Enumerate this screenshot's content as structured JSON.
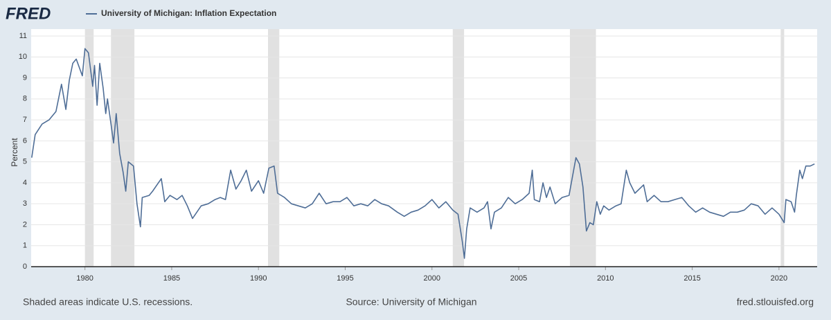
{
  "logo": "FRED",
  "chart_data": {
    "type": "line",
    "y_label": "Percent",
    "xlim": [
      1976.9,
      2022.2
    ],
    "ylim": [
      0,
      11
    ],
    "xticks": [
      1980,
      1985,
      1990,
      1995,
      2000,
      2005,
      2010,
      2015,
      2020
    ],
    "yticks": [
      0,
      1,
      2,
      3,
      4,
      5,
      6,
      7,
      8,
      9,
      10,
      11
    ],
    "grid": true,
    "recession_color": "#e1e1e1",
    "recessions": [
      [
        1980.0,
        1980.5
      ],
      [
        1981.5,
        1982.85
      ],
      [
        1990.55,
        1991.2
      ],
      [
        2001.2,
        2001.85
      ],
      [
        2007.95,
        2009.45
      ],
      [
        2020.1,
        2020.3
      ]
    ],
    "x": [
      1976.93,
      1977.13,
      1977.53,
      1977.93,
      1978.33,
      1978.65,
      1978.9,
      1979.1,
      1979.3,
      1979.5,
      1979.85,
      1980.0,
      1980.2,
      1980.45,
      1980.55,
      1980.7,
      1980.85,
      1981.05,
      1981.2,
      1981.3,
      1981.5,
      1981.65,
      1981.8,
      1982.0,
      1982.2,
      1982.35,
      1982.5,
      1982.8,
      1983.0,
      1983.2,
      1983.3,
      1983.7,
      1983.9,
      1984.4,
      1984.6,
      1984.9,
      1985.3,
      1985.6,
      1985.9,
      1986.2,
      1986.7,
      1987.1,
      1987.5,
      1987.8,
      1988.1,
      1988.4,
      1988.7,
      1989.0,
      1989.3,
      1989.6,
      1990.0,
      1990.3,
      1990.6,
      1990.9,
      1991.1,
      1991.5,
      1991.9,
      1992.3,
      1992.7,
      1993.1,
      1993.5,
      1993.9,
      1994.3,
      1994.7,
      1995.1,
      1995.5,
      1995.9,
      1996.3,
      1996.7,
      1997.1,
      1997.5,
      1998.0,
      1998.4,
      1998.8,
      1999.2,
      1999.6,
      2000.0,
      2000.4,
      2000.8,
      2001.2,
      2001.5,
      2001.75,
      2001.87,
      2002.0,
      2002.2,
      2002.6,
      2003.0,
      2003.2,
      2003.4,
      2003.6,
      2004.0,
      2004.4,
      2004.8,
      2005.2,
      2005.6,
      2005.78,
      2005.9,
      2006.2,
      2006.4,
      2006.6,
      2006.8,
      2007.1,
      2007.5,
      2007.9,
      2008.3,
      2008.5,
      2008.7,
      2008.9,
      2009.1,
      2009.3,
      2009.5,
      2009.7,
      2009.9,
      2010.2,
      2010.6,
      2010.9,
      2011.2,
      2011.4,
      2011.7,
      2012.2,
      2012.4,
      2012.8,
      2013.2,
      2013.6,
      2014.0,
      2014.4,
      2014.8,
      2015.2,
      2015.6,
      2016.0,
      2016.4,
      2016.8,
      2017.2,
      2017.6,
      2018.0,
      2018.4,
      2018.8,
      2019.2,
      2019.6,
      2020.0,
      2020.3,
      2020.4,
      2020.7,
      2020.9,
      2021.0,
      2021.2,
      2021.35,
      2021.55,
      2021.8,
      2022.05
    ],
    "series": [
      {
        "name": "University of Michigan: Inflation Expectation",
        "color": "#4e6d96",
        "values": [
          5.2,
          6.3,
          6.8,
          7.0,
          7.4,
          8.7,
          7.5,
          8.9,
          9.7,
          9.9,
          9.1,
          10.4,
          10.2,
          8.6,
          9.6,
          7.7,
          9.7,
          8.5,
          7.3,
          8.0,
          6.8,
          5.9,
          7.3,
          5.4,
          4.5,
          3.6,
          5.0,
          4.8,
          3.0,
          1.9,
          3.3,
          3.4,
          3.6,
          4.2,
          3.1,
          3.4,
          3.2,
          3.4,
          2.9,
          2.3,
          2.9,
          3.0,
          3.2,
          3.3,
          3.2,
          4.6,
          3.7,
          4.1,
          4.6,
          3.6,
          4.1,
          3.5,
          4.7,
          4.8,
          3.5,
          3.3,
          3.0,
          2.9,
          2.8,
          3.0,
          3.5,
          3.0,
          3.1,
          3.1,
          3.3,
          2.9,
          3.0,
          2.9,
          3.2,
          3.0,
          2.9,
          2.6,
          2.4,
          2.6,
          2.7,
          2.9,
          3.2,
          2.8,
          3.1,
          2.7,
          2.5,
          1.2,
          0.4,
          1.8,
          2.8,
          2.6,
          2.8,
          3.1,
          1.8,
          2.6,
          2.8,
          3.3,
          3.0,
          3.2,
          3.5,
          4.6,
          3.2,
          3.1,
          4.0,
          3.3,
          3.8,
          3.0,
          3.3,
          3.4,
          5.2,
          4.9,
          3.8,
          1.7,
          2.1,
          2.0,
          3.1,
          2.5,
          2.9,
          2.7,
          2.9,
          3.0,
          4.6,
          4.0,
          3.5,
          3.9,
          3.1,
          3.4,
          3.1,
          3.1,
          3.2,
          3.3,
          2.9,
          2.6,
          2.8,
          2.6,
          2.5,
          2.4,
          2.6,
          2.6,
          2.7,
          3.0,
          2.9,
          2.5,
          2.8,
          2.5,
          2.1,
          3.2,
          3.1,
          2.6,
          3.4,
          4.6,
          4.2,
          4.8,
          4.8,
          4.9
        ]
      }
    ]
  },
  "footer": {
    "note": "Shaded areas indicate U.S. recessions.",
    "source": "Source: University of Michigan",
    "site": "fred.stlouisfed.org"
  }
}
